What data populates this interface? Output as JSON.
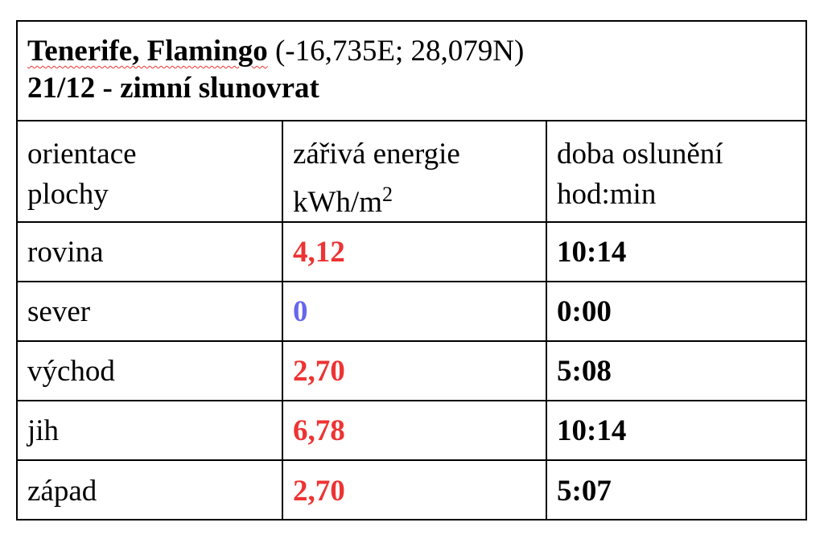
{
  "header": {
    "place": "Tenerife, Flamingo",
    "coords": "(-16,735E; 28,079N)",
    "subtitle": "21/12 - zimní slunovrat"
  },
  "columns": {
    "c1_line1": "orientace",
    "c1_line2": "plochy",
    "c2_line1": "zářivá energie",
    "c2_line2": "kWh/m",
    "c2_exp": "2",
    "c3_line1": "doba oslunění",
    "c3_line2": "hod:min"
  },
  "rows": [
    {
      "orientation": "rovina",
      "energy": "4,12",
      "energy_color": "#ee3333",
      "time": "10:14"
    },
    {
      "orientation": "sever",
      "energy": "0",
      "energy_color": "#6666ee",
      "time": "0:00"
    },
    {
      "orientation": "východ",
      "energy": "2,70",
      "energy_color": "#ee3333",
      "time": "5:08"
    },
    {
      "orientation": "jih",
      "energy": "6,78",
      "energy_color": "#ee3333",
      "time": "10:14"
    },
    {
      "orientation": "západ",
      "energy": "2,70",
      "energy_color": "#ee3333",
      "time": "5:07"
    }
  ]
}
